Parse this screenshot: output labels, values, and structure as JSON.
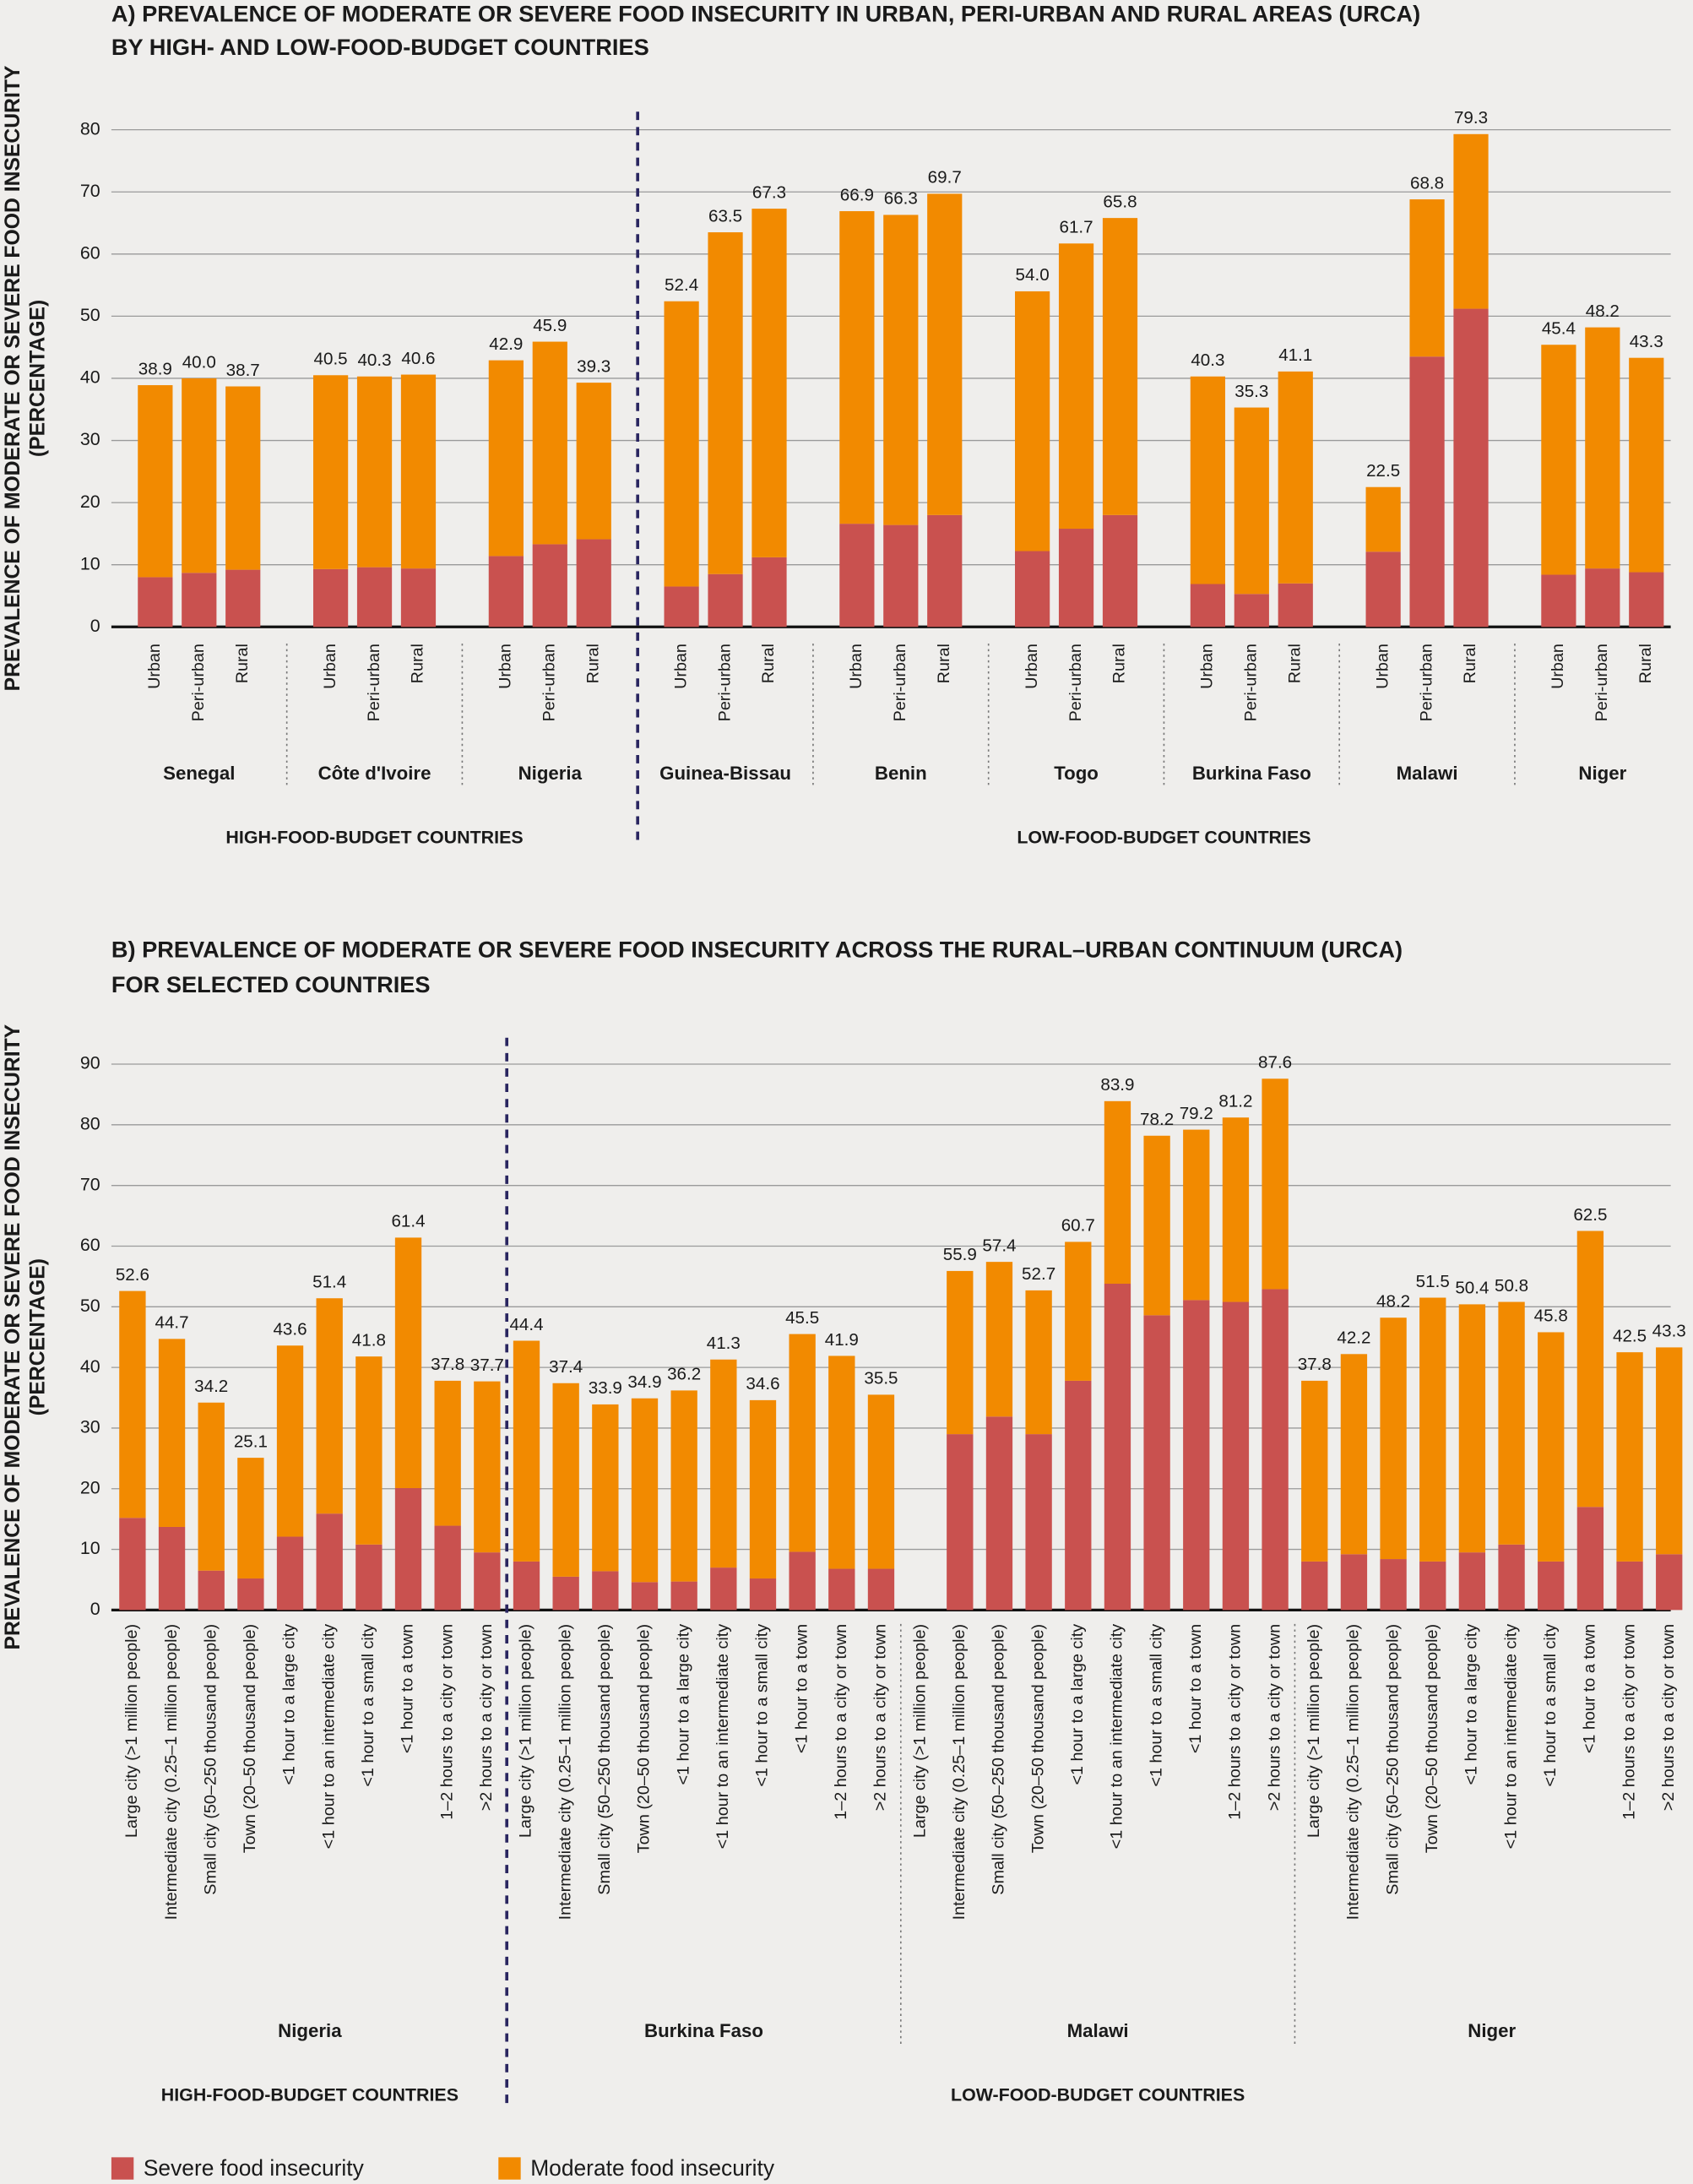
{
  "chart_data": [
    {
      "type": "bar",
      "stacked": true,
      "grid": true,
      "title": [
        "A) PREVALENCE OF MODERATE OR SEVERE FOOD INSECURITY IN URBAN, PERI-URBAN AND RURAL AREAS (URCA)",
        "BY HIGH- AND LOW-FOOD-BUDGET COUNTRIES"
      ],
      "y_label": [
        "PREVALENCE OF MODERATE OR SEVERE FOOD INSECURITY",
        "(PERCENTAGE)"
      ],
      "ylim": [
        0,
        80
      ],
      "yticks": [
        0,
        10,
        20,
        30,
        40,
        50,
        60,
        70,
        80
      ],
      "sections": [
        {
          "name": "HIGH-FOOD-BUDGET COUNTRIES",
          "groups": [
            {
              "name": "Senegal",
              "categories": [
                "Urban",
                "Peri-urban",
                "Rural"
              ]
            },
            {
              "name": "Côte d'Ivoire",
              "categories": [
                "Urban",
                "Peri-urban",
                "Rural"
              ]
            },
            {
              "name": "Nigeria",
              "categories": [
                "Urban",
                "Peri-urban",
                "Rural"
              ]
            }
          ]
        },
        {
          "name": "LOW-FOOD-BUDGET COUNTRIES",
          "groups": [
            {
              "name": "Guinea-Bissau",
              "categories": [
                "Urban",
                "Peri-urban",
                "Rural"
              ]
            },
            {
              "name": "Benin",
              "categories": [
                "Urban",
                "Peri-urban",
                "Rural"
              ]
            },
            {
              "name": "Togo",
              "categories": [
                "Urban",
                "Peri-urban",
                "Rural"
              ]
            },
            {
              "name": "Burkina Faso",
              "categories": [
                "Urban",
                "Peri-urban",
                "Rural"
              ]
            },
            {
              "name": "Malawi",
              "categories": [
                "Urban",
                "Peri-urban",
                "Rural"
              ]
            },
            {
              "name": "Niger",
              "categories": [
                "Urban",
                "Peri-urban",
                "Rural"
              ]
            }
          ]
        }
      ],
      "series": [
        {
          "color": "#c9514f",
          "values": [
            8.0,
            8.7,
            9.2,
            9.3,
            9.6,
            9.4,
            11.4,
            13.3,
            14.1,
            6.5,
            8.5,
            11.2,
            16.6,
            16.4,
            18.0,
            12.2,
            15.8,
            18.0,
            6.9,
            5.3,
            7.0,
            12.1,
            43.5,
            51.2,
            8.4,
            9.4,
            8.8
          ]
        },
        {
          "color": "#f28a00",
          "values": [
            30.9,
            31.3,
            29.5,
            31.2,
            30.7,
            31.2,
            31.5,
            32.6,
            25.2,
            45.9,
            55.0,
            56.1,
            50.3,
            49.9,
            51.7,
            41.8,
            45.9,
            47.8,
            33.4,
            30.0,
            34.1,
            10.4,
            25.3,
            28.1,
            37.0,
            38.8,
            34.5
          ]
        }
      ],
      "total_labels": [
        "38.9",
        "40.0",
        "38.7",
        "40.5",
        "40.3",
        "40.6",
        "42.9",
        "45.9",
        "39.3",
        "52.4",
        "63.5",
        "67.3",
        "66.9",
        "66.3",
        "69.7",
        "54.0",
        "61.7",
        "65.8",
        "40.3",
        "35.3",
        "41.1",
        "22.5",
        "68.8",
        "79.3",
        "45.4",
        "48.2",
        "43.3"
      ]
    },
    {
      "type": "bar",
      "stacked": true,
      "grid": true,
      "title": [
        "B) PREVALENCE OF MODERATE OR SEVERE FOOD INSECURITY ACROSS THE RURAL–URBAN CONTINUUM (URCA)",
        "FOR SELECTED COUNTRIES"
      ],
      "y_label": [
        "PREVALENCE OF MODERATE OR SEVERE FOOD INSECURITY",
        "(PERCENTAGE)"
      ],
      "ylim": [
        0,
        90
      ],
      "yticks": [
        0,
        10,
        20,
        30,
        40,
        50,
        60,
        70,
        80,
        90
      ],
      "sections": [
        {
          "name": "HIGH-FOOD-BUDGET COUNTRIES",
          "groups": [
            {
              "name": "Nigeria",
              "categories": [
                "Large city (>1 million people)",
                "Intermediate city (0.25–1 million people)",
                "Small city (50–250 thousand people)",
                "Town (20–50 thousand people)",
                "<1 hour to a large city",
                "<1 hour to an intermediate city",
                "<1 hour to a small city",
                "<1 hour to a town",
                "1–2 hours to a city or town",
                ">2 hours to a city or town"
              ]
            }
          ]
        },
        {
          "name": "LOW-FOOD-BUDGET COUNTRIES",
          "groups": [
            {
              "name": "Burkina Faso",
              "categories": [
                "Large city (>1 million people)",
                "Intermediate city (0.25–1 million people)",
                "Small city (50–250 thousand people)",
                "Town (20–50 thousand people)",
                "<1 hour to a large city",
                "<1 hour to an intermediate city",
                "<1 hour to a small city",
                "<1 hour to a town",
                "1–2 hours to a city or town",
                ">2 hours to a city or town"
              ]
            },
            {
              "name": "Malawi",
              "categories": [
                "Large city (>1 million people)",
                "Intermediate city (0.25–1 million people)",
                "Small city (50–250 thousand people)",
                "Town (20–50 thousand people)",
                "<1 hour to a large city",
                "<1 hour to an intermediate city",
                "<1 hour to a small city",
                "<1 hour to a town",
                "1–2 hours to a city or town",
                ">2 hours to a city or town"
              ]
            },
            {
              "name": "Niger",
              "categories": [
                "Large city (>1 million people)",
                "Intermediate city (0.25–1 million people)",
                "Small city (50–250 thousand people)",
                "Town (20–50 thousand people)",
                "<1 hour to a large city",
                "<1 hour to an intermediate city",
                "<1 hour to a small city",
                "<1 hour to a town",
                "1–2 hours to a city or town",
                ">2 hours to a city or town"
              ]
            }
          ]
        }
      ],
      "series": [
        {
          "name": "Severe food insecurity",
          "color": "#c9514f",
          "values": [
            15.2,
            13.7,
            6.5,
            5.2,
            12.1,
            15.9,
            10.8,
            20.1,
            13.9,
            9.5,
            8.0,
            5.5,
            6.4,
            4.6,
            4.7,
            7.0,
            5.2,
            9.6,
            6.8,
            6.8,
            null,
            29.0,
            31.9,
            29.0,
            37.8,
            53.8,
            48.6,
            51.1,
            50.8,
            52.9,
            8.0,
            9.2,
            8.4,
            8.0,
            9.5,
            10.8,
            8.0,
            17.0,
            8.0,
            9.2
          ]
        },
        {
          "name": "Moderate food insecurity",
          "color": "#f28a00",
          "values": [
            37.4,
            31.0,
            27.7,
            19.9,
            31.5,
            35.5,
            31.0,
            41.3,
            23.9,
            28.2,
            36.4,
            31.9,
            27.5,
            30.3,
            31.5,
            34.3,
            29.4,
            35.9,
            35.1,
            28.7,
            null,
            26.9,
            25.5,
            23.7,
            22.9,
            30.1,
            29.6,
            28.1,
            30.4,
            34.7,
            29.8,
            33.0,
            39.8,
            43.5,
            40.9,
            40.0,
            37.8,
            45.5,
            34.5,
            34.1
          ]
        }
      ],
      "total_labels": [
        "52.6",
        "44.7",
        "34.2",
        "25.1",
        "43.6",
        "51.4",
        "41.8",
        "61.4",
        "37.8",
        "37.7",
        "44.4",
        "37.4",
        "33.9",
        "34.9",
        "36.2",
        "41.3",
        "34.6",
        "45.5",
        "41.9",
        "35.5",
        null,
        "55.9",
        "57.4",
        "52.7",
        "60.7",
        "83.9",
        "78.2",
        "79.2",
        "81.2",
        "87.6",
        "37.8",
        "42.2",
        "48.2",
        "51.5",
        "50.4",
        "50.8",
        "45.8",
        "62.5",
        "42.5",
        "43.3"
      ]
    }
  ]
}
